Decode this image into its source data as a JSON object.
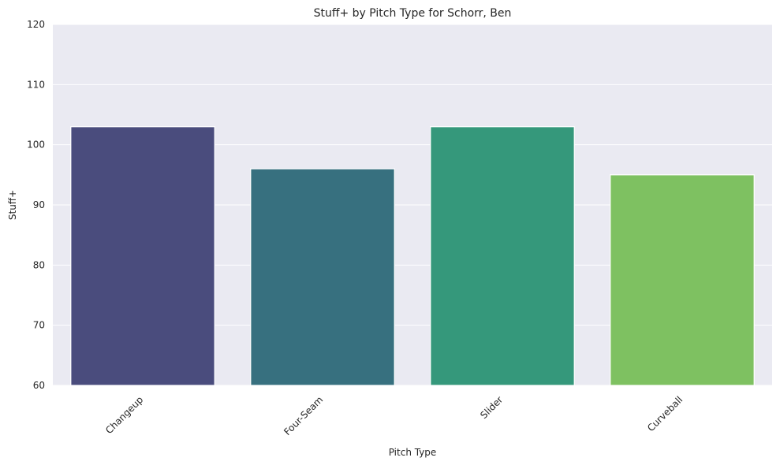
{
  "chart_data": {
    "type": "bar",
    "title": "Stuff+ by Pitch Type for Schorr, Ben",
    "xlabel": "Pitch Type",
    "ylabel": "Stuff+",
    "categories": [
      "Changeup",
      "Four-Seam",
      "Slider",
      "Curveball"
    ],
    "values": [
      103,
      96,
      103,
      95
    ],
    "colors": [
      "#4a4c7d",
      "#37707f",
      "#35987b",
      "#7ec161"
    ],
    "ylim": [
      60,
      120
    ],
    "yticks": [
      60,
      70,
      80,
      90,
      100,
      110,
      120
    ],
    "grid": true,
    "background": "#eaeaf2"
  }
}
